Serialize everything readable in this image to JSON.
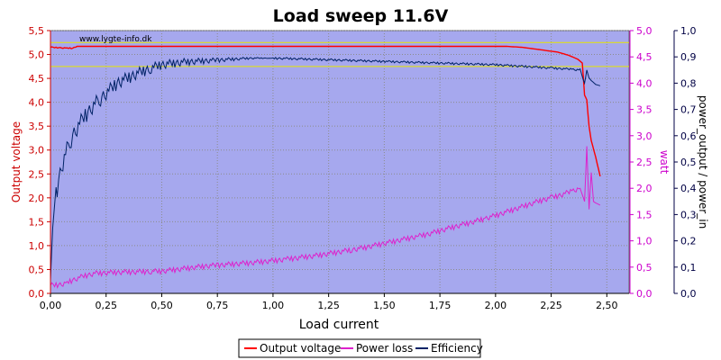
{
  "chart_data": {
    "type": "line",
    "title": "Load sweep 11.6V",
    "watermark": "www.lygte-info.dk",
    "xlabel": "Load current",
    "ylabel_left": "Output voltage",
    "ylabel_right1": "watt",
    "ylabel_right2": "power_output / power_in",
    "xlim": [
      0,
      2.6
    ],
    "ylim_left": [
      0,
      5.5
    ],
    "ylim_right1": [
      0,
      5.0
    ],
    "ylim_right2": [
      0,
      1.0
    ],
    "x_ticks": [
      "0,00",
      "0,25",
      "0,50",
      "0,75",
      "1,00",
      "1,25",
      "1,50",
      "1,75",
      "2,00",
      "2,25",
      "2,50"
    ],
    "y_left_ticks": [
      "0,0",
      "0,5",
      "1,0",
      "1,5",
      "2,0",
      "2,5",
      "3,0",
      "3,5",
      "4,0",
      "4,5",
      "5,0",
      "5,5"
    ],
    "y_right1_ticks": [
      "0,0",
      "0,5",
      "1,0",
      "1,5",
      "2,0",
      "2,5",
      "3,0",
      "3,5",
      "4,0",
      "4,5",
      "5,0"
    ],
    "y_right2_ticks": [
      "0,0",
      "0,1",
      "0,2",
      "0,3",
      "0,4",
      "0,5",
      "0,6",
      "0,7",
      "0,8",
      "0,9",
      "1,0"
    ],
    "reference_lines_left_axis": [
      5.25,
      4.75
    ],
    "grid": true,
    "legend_position": "bottom",
    "colors": {
      "plot_bg": "#a6a8ee",
      "grid": "#8c8c8c",
      "output_voltage": "#ff0000",
      "power_loss": "#dd22cc",
      "efficiency": "#002266",
      "reference": "#e6e600",
      "left_axis": "#cc0000",
      "right1_axis": "#cc00cc",
      "right2_axis": "#000044"
    },
    "series": [
      {
        "name": "Output voltage",
        "axis": "left",
        "x": [
          0.0,
          0.05,
          0.1,
          0.12,
          0.3,
          0.6,
          1.0,
          1.4,
          1.8,
          2.05,
          2.12,
          2.2,
          2.28,
          2.33,
          2.37,
          2.39,
          2.4,
          2.41,
          2.42,
          2.43,
          2.45,
          2.47
        ],
        "values": [
          5.15,
          5.14,
          5.13,
          5.17,
          5.17,
          5.17,
          5.17,
          5.17,
          5.17,
          5.17,
          5.15,
          5.1,
          5.05,
          4.98,
          4.9,
          4.82,
          4.15,
          4.05,
          3.5,
          3.2,
          2.85,
          2.45
        ]
      },
      {
        "name": "Power loss",
        "axis": "right1",
        "x": [
          0.0,
          0.05,
          0.1,
          0.15,
          0.2,
          0.3,
          0.4,
          0.5,
          0.6,
          0.7,
          0.8,
          0.9,
          1.0,
          1.1,
          1.2,
          1.3,
          1.4,
          1.5,
          1.6,
          1.7,
          1.8,
          1.9,
          2.0,
          2.1,
          2.2,
          2.3,
          2.38,
          2.4,
          2.41,
          2.42,
          2.43,
          2.44,
          2.45,
          2.46,
          2.47
        ],
        "values": [
          0.15,
          0.17,
          0.25,
          0.33,
          0.38,
          0.4,
          0.41,
          0.42,
          0.47,
          0.52,
          0.55,
          0.58,
          0.62,
          0.67,
          0.72,
          0.79,
          0.86,
          0.95,
          1.04,
          1.13,
          1.25,
          1.36,
          1.48,
          1.62,
          1.76,
          1.88,
          2.0,
          1.75,
          2.8,
          1.6,
          2.3,
          1.75,
          1.72,
          1.7,
          1.68
        ]
      },
      {
        "name": "Efficiency",
        "axis": "right2",
        "x": [
          0.0,
          0.01,
          0.02,
          0.03,
          0.05,
          0.08,
          0.1,
          0.15,
          0.2,
          0.25,
          0.3,
          0.4,
          0.5,
          0.6,
          0.7,
          0.8,
          0.9,
          1.0,
          1.2,
          1.4,
          1.6,
          1.8,
          2.0,
          2.1,
          2.2,
          2.3,
          2.38,
          2.4,
          2.41,
          2.42,
          2.43,
          2.45,
          2.47
        ],
        "values": [
          0.05,
          0.25,
          0.35,
          0.4,
          0.48,
          0.56,
          0.6,
          0.67,
          0.72,
          0.76,
          0.8,
          0.84,
          0.87,
          0.88,
          0.885,
          0.89,
          0.895,
          0.895,
          0.89,
          0.885,
          0.88,
          0.875,
          0.87,
          0.865,
          0.86,
          0.855,
          0.85,
          0.8,
          0.85,
          0.82,
          0.81,
          0.795,
          0.79
        ]
      }
    ]
  }
}
